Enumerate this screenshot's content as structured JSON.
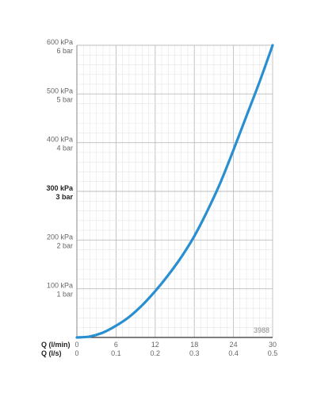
{
  "chart_data": {
    "type": "line",
    "title": "",
    "code": "3988",
    "series": [
      {
        "name": "",
        "color": "#2a8fd0",
        "x_l_per_min": [
          0,
          2,
          4,
          6,
          8,
          10,
          12,
          14,
          16,
          18,
          20,
          22,
          24,
          26,
          28,
          30
        ],
        "y_kpa": [
          0,
          2,
          10,
          24,
          42,
          66,
          95,
          128,
          165,
          208,
          260,
          318,
          385,
          455,
          525,
          600
        ]
      }
    ],
    "x_axis": {
      "label_primary": "Q (l/min)",
      "label_secondary": "Q (l/s)",
      "range": [
        0,
        30
      ],
      "ticks_primary": [
        "0",
        "6",
        "12",
        "18",
        "24",
        "30"
      ],
      "ticks_secondary": [
        "0",
        "0.1",
        "0.2",
        "0.3",
        "0.4",
        "0.5"
      ]
    },
    "y_axis": {
      "range": [
        0,
        600
      ],
      "ticks": [
        {
          "value": 100,
          "kpa": "100 kPa",
          "bar": "1 bar",
          "emphasized": false
        },
        {
          "value": 200,
          "kpa": "200 kPa",
          "bar": "2 bar",
          "emphasized": false
        },
        {
          "value": 300,
          "kpa": "300 kPa",
          "bar": "3 bar",
          "emphasized": true
        },
        {
          "value": 400,
          "kpa": "400 kPa",
          "bar": "4 bar",
          "emphasized": false
        },
        {
          "value": 500,
          "kpa": "500 kPa",
          "bar": "5 bar",
          "emphasized": false
        },
        {
          "value": 600,
          "kpa": "600 kPa",
          "bar": "6 bar",
          "emphasized": false
        }
      ]
    },
    "grid": true
  }
}
